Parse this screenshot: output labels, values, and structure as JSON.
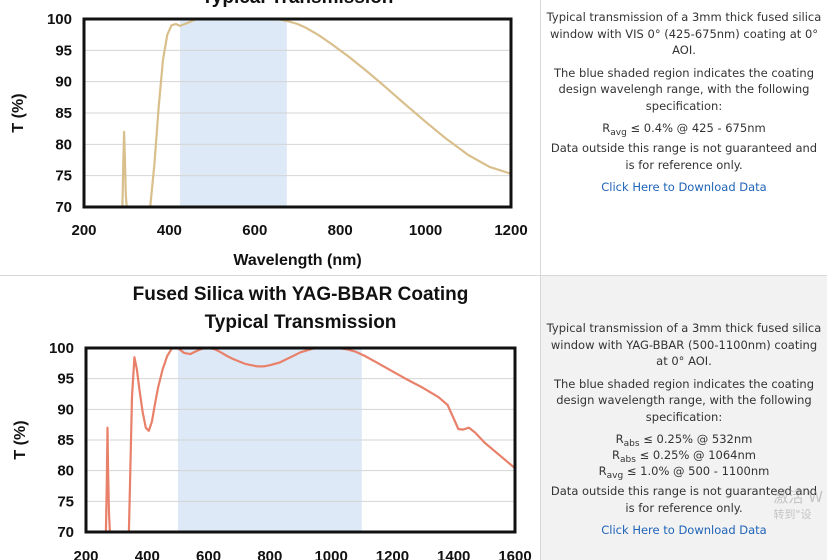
{
  "chart_data": [
    {
      "type": "line",
      "title": "Typical Transmission",
      "subtitle": "",
      "xlabel": "Wavelength (nm)",
      "ylabel": "T (%)",
      "xlim": [
        200,
        1200
      ],
      "ylim": [
        70,
        100
      ],
      "xticks": [
        200,
        400,
        600,
        800,
        1000,
        1200
      ],
      "yticks": [
        70,
        75,
        80,
        85,
        90,
        95,
        100
      ],
      "line_color": "#d9bf8c",
      "shade_color": "#dde9f6",
      "shaded_range": [
        425,
        675
      ],
      "grid": "horizontal",
      "series": [
        {
          "segments": [
            {
              "x": [
                290,
                292,
                294,
                296,
                298,
                300
              ],
              "y": [
                70,
                77,
                82,
                77,
                72,
                70
              ]
            },
            {
              "x": [
                355,
                365,
                375,
                385,
                395,
                405,
                415,
                425,
                440,
                460,
                480,
                500,
                520,
                540,
                560,
                580,
                600,
                620,
                640,
                660,
                680,
                700,
                720,
                750,
                780,
                820,
                860,
                900,
                950,
                1000,
                1050,
                1100,
                1150,
                1200
              ],
              "y": [
                70,
                77,
                86,
                93.5,
                97.5,
                99.0,
                99.2,
                98.9,
                99.3,
                99.9,
                100.2,
                100.4,
                100.4,
                100.3,
                100.2,
                100.1,
                100.0,
                100.1,
                100.1,
                99.9,
                99.6,
                99.2,
                98.6,
                97.4,
                96.0,
                94.0,
                91.8,
                89.5,
                86.5,
                83.6,
                80.8,
                78.3,
                76.4,
                75.3
              ]
            }
          ]
        }
      ],
      "info": {
        "description": "Typical transmission of a 3mm thick fused silica window with VIS 0° (425-675nm) coating at 0° AOI.",
        "shade_note": "The blue shaded region indicates the coating design wavelengh range, with the following specification:",
        "specs": [
          {
            "symbol": "R",
            "sub": "avg",
            "text": "≤ 0.4% @ 425 - 675nm"
          }
        ],
        "disclaimer": "Data outside this range is not guaranteed and is for reference only.",
        "download": "Click Here to Download Data"
      }
    },
    {
      "type": "line",
      "title": "Fused Silica with YAG-BBAR Coating",
      "subtitle": "Typical Transmission",
      "xlabel": "",
      "ylabel": "T (%)",
      "xlim": [
        200,
        1600
      ],
      "ylim": [
        70,
        100
      ],
      "xticks": [
        200,
        400,
        600,
        800,
        1000,
        1200,
        1400,
        1600
      ],
      "yticks": [
        70,
        75,
        80,
        85,
        90,
        95,
        100
      ],
      "line_color": "#e8806a",
      "shade_color": "#dde9f6",
      "shaded_range": [
        500,
        1100
      ],
      "grid": "horizontal",
      "series": [
        {
          "segments": [
            {
              "x": [
                265,
                268,
                270,
                272,
                275,
                278
              ],
              "y": [
                70,
                78,
                87,
                80,
                73,
                70
              ]
            },
            {
              "x": [
                340,
                350,
                358,
                366,
                375,
                385,
                395,
                405,
                415,
                425,
                435,
                450,
                465,
                480,
                490,
                500,
                520,
                540,
                560,
                580,
                600,
                620,
                640,
                660,
                680,
                700,
                720,
                740,
                760,
                780,
                800,
                830,
                860,
                900,
                940,
                980,
                1020,
                1050,
                1080,
                1110,
                1150,
                1200,
                1250,
                1300,
                1350,
                1380,
                1400,
                1415,
                1430,
                1450,
                1470,
                1500,
                1550,
                1600
              ],
              "y": [
                70,
                92,
                98.5,
                96.5,
                93.0,
                89.5,
                87.0,
                86.5,
                88.0,
                90.8,
                93.5,
                96.5,
                98.7,
                99.9,
                100.1,
                100.0,
                99.2,
                99.0,
                99.5,
                99.9,
                100.0,
                99.8,
                99.3,
                98.7,
                98.2,
                97.8,
                97.4,
                97.2,
                97.0,
                97.0,
                97.2,
                97.6,
                98.3,
                99.3,
                99.9,
                100.1,
                100.0,
                99.8,
                99.4,
                98.7,
                97.6,
                96.2,
                94.8,
                93.5,
                92.0,
                90.7,
                88.5,
                86.8,
                86.7,
                87.0,
                86.2,
                84.6,
                82.5,
                80.4
              ]
            }
          ]
        }
      ],
      "info": {
        "description": "Typical transmission of a 3mm thick fused silica window with YAG-BBAR (500-1100nm) coating at 0° AOI.",
        "shade_note": "The blue shaded region indicates the coating design wavelength range, with the following specification:",
        "specs": [
          {
            "symbol": "R",
            "sub": "abs",
            "text": "≤ 0.25% @ 532nm"
          },
          {
            "symbol": "R",
            "sub": "abs",
            "text": "≤ 0.25% @ 1064nm"
          },
          {
            "symbol": "R",
            "sub": "avg",
            "text": "≤ 1.0% @ 500 - 1100nm"
          }
        ],
        "disclaimer": "Data outside this range is not guaranteed and is for reference only.",
        "download": "Click Here to Download Data"
      }
    }
  ],
  "watermark": {
    "line1": "激活 W",
    "line2": "转到\"设"
  }
}
